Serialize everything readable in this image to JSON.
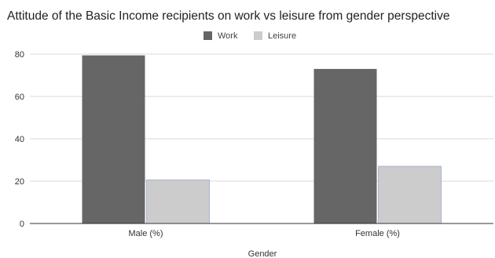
{
  "chart_data": {
    "type": "bar",
    "title": "Attitude of the Basic Income recipients on work vs leisure from gender perspective",
    "xlabel": "Gender",
    "ylabel": "",
    "categories": [
      "Male (%)",
      "Female (%)"
    ],
    "series": [
      {
        "name": "Work",
        "values": [
          79.4,
          73.0
        ],
        "color": "#666666"
      },
      {
        "name": "Leisure",
        "values": [
          20.6,
          27.0
        ],
        "color": "#cccccc"
      }
    ],
    "ylim": [
      0,
      80
    ],
    "yticks": [
      "0",
      "20",
      "40",
      "60",
      "80"
    ],
    "grid": true,
    "legend_position": "top"
  }
}
